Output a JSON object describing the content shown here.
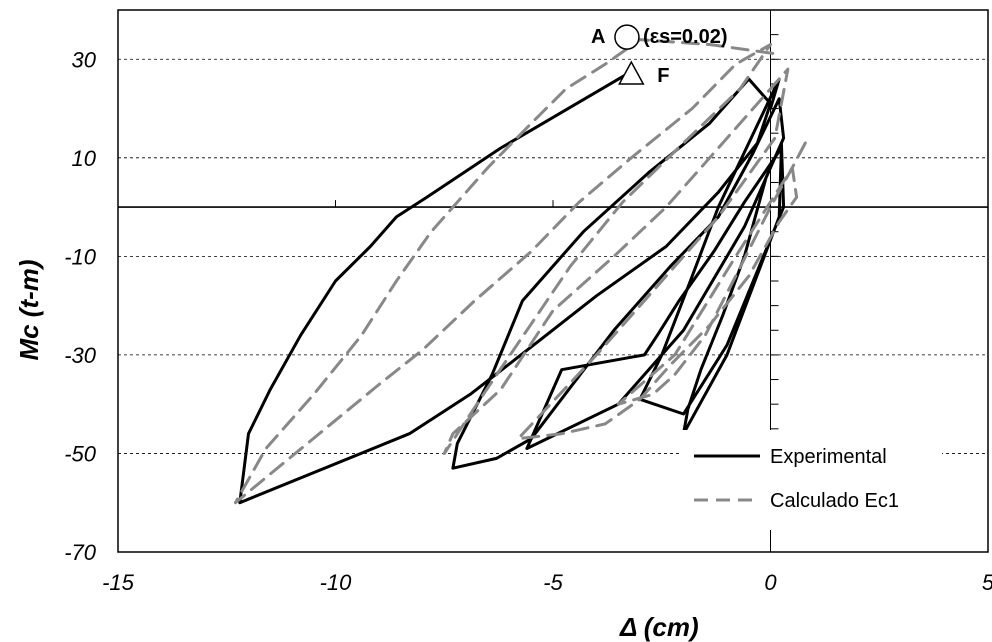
{
  "chart_data": {
    "type": "line",
    "xlabel": "Δ (cm)",
    "ylabel": "Mc (t-m)",
    "xlim": [
      -15,
      5
    ],
    "ylim": [
      -70,
      40
    ],
    "x_ticks": [
      -15,
      -10,
      -5,
      0,
      5
    ],
    "y_ticks": [
      30,
      10,
      -10,
      -30,
      -50,
      -70
    ],
    "y_ticks_labeled": [
      "30",
      "10",
      "-10",
      "-30",
      "-50",
      "-70"
    ],
    "x_ticks_labeled": [
      "-15",
      "-10",
      "-5",
      "0",
      "5"
    ],
    "grid": "horizontal dashed",
    "legend_position": "lower-right",
    "legend": [
      "Experimental",
      "Calculado Ec1"
    ],
    "annotations": {
      "A_label": "A",
      "A_text": "(εs=0.02)",
      "A_point": [
        -3.3,
        34.5
      ],
      "F_label": "F",
      "F_point": [
        -3.2,
        27
      ]
    },
    "series": [
      {
        "name": "Experimental",
        "color": "#000000",
        "style": "solid",
        "x": [
          0,
          0.2,
          -0.5,
          -1.2,
          -1.8,
          -2.5,
          -3.0,
          -2.0,
          -1.0,
          0.3,
          0.25,
          -0.1,
          -0.6,
          -1.1,
          -1.6,
          -1.9,
          -2.0,
          -1.0,
          0.2,
          0.25,
          -0.6,
          -1.3,
          -2.1,
          -2.6,
          -2.9,
          -4.8,
          -5.6,
          -3.5,
          -2.0,
          -0.6,
          0.3,
          0.2,
          -0.4,
          -1.2,
          -2.3,
          -3.6,
          -5.5,
          -6.3,
          -7.3,
          -7.2,
          -6.4,
          -5.7,
          -4.3,
          -2.8,
          -1.4,
          -0.5,
          0.0,
          -0.3,
          -1.2,
          -2.4,
          -4.0,
          -5.3,
          -6.9,
          -8.3,
          -12.2,
          -12.0,
          -11.5,
          -10.8,
          -10.0,
          -9.2,
          -8.6,
          -7.9,
          -6.2,
          -3.3
        ],
        "y": [
          20,
          26,
          13,
          0,
          -14,
          -30,
          -39,
          -42,
          -28,
          0,
          13,
          6,
          -10,
          -22,
          -33,
          -41,
          -46,
          -30,
          -2,
          12,
          1,
          -9,
          -19,
          -26,
          -30,
          -33,
          -49,
          -40,
          -25,
          -4,
          14,
          22,
          11,
          -2,
          -12,
          -25,
          -47,
          -51,
          -53,
          -48,
          -34,
          -19,
          -5,
          7,
          17,
          26,
          21,
          13,
          3,
          -8,
          -18,
          -27,
          -38,
          -46,
          -60,
          -46,
          -37,
          -26,
          -15,
          -8,
          -2,
          2,
          12,
          27
        ]
      },
      {
        "name": "Calculado Ec1",
        "color": "#888888",
        "style": "dashed",
        "x": [
          0.8,
          0.5,
          0.0,
          -0.8,
          -1.5,
          -2.2,
          -2.7,
          -3.5,
          -2.2,
          -0.8,
          0.5,
          0.6,
          0.2,
          -0.5,
          -1.4,
          -2.3,
          -3.0,
          -3.8,
          -4.8,
          -5.8,
          -4.0,
          -2.5,
          -1.2,
          0.1,
          0.4,
          -0.2,
          -1.2,
          -2.4,
          -3.6,
          -5.0,
          -6.2,
          -7.3,
          -7.5,
          -6.6,
          -5.6,
          -4.6,
          -3.4,
          -2.0,
          -0.7,
          0.0,
          -0.8,
          -1.8,
          -3.2,
          -4.4,
          -5.5,
          -6.8,
          -8.0,
          -9.0,
          -12.3,
          -11.6,
          -10.5,
          -9.4,
          -8.6,
          -7.8,
          -6.5,
          -5.5,
          -4.7,
          -3.8,
          -3.0,
          -1.4,
          0.2
        ],
        "y": [
          13,
          8,
          0,
          -14,
          -26,
          -34,
          -38,
          -40,
          -30,
          -10,
          8,
          2,
          -3,
          -14,
          -24,
          -32,
          -39,
          -44,
          -46,
          -47,
          -30,
          -15,
          -2,
          14,
          28,
          22,
          12,
          0,
          -10,
          -21,
          -37,
          -46,
          -50,
          -38,
          -25,
          -12,
          1,
          13,
          24,
          33,
          29,
          20,
          10,
          1,
          -9,
          -19,
          -29,
          -36,
          -60,
          -49,
          -38,
          -26,
          -15,
          -5,
          8,
          17,
          24,
          29,
          34,
          33,
          31
        ]
      }
    ]
  }
}
